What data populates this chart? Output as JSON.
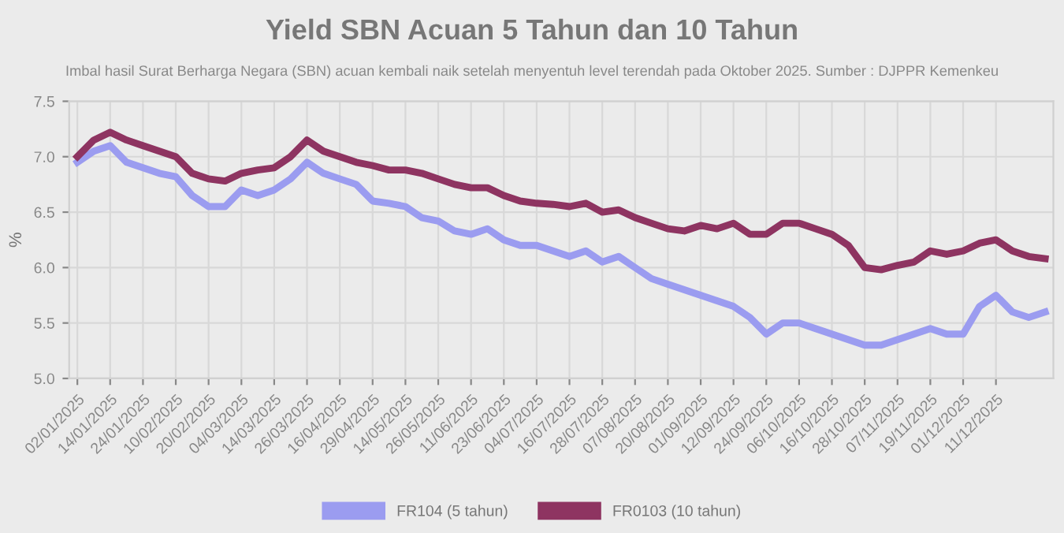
{
  "chart_data": {
    "type": "line",
    "title": "Yield SBN Acuan 5 Tahun dan 10 Tahun",
    "subtitle": "Imbal hasil Surat Berharga Negara (SBN) acuan kembali naik setelah menyentuh level terendah pada Oktober 2025. Sumber : DJPPR Kemenkeu",
    "ylabel": "%",
    "categories": [
      "02/01/2025",
      null,
      "14/01/2025",
      null,
      "24/01/2025",
      null,
      "10/02/2025",
      null,
      "20/02/2025",
      null,
      "04/03/2025",
      null,
      "14/03/2025",
      null,
      "26/03/2025",
      null,
      "16/04/2025",
      null,
      "29/04/2025",
      null,
      "14/05/2025",
      null,
      "26/05/2025",
      null,
      "11/06/2025",
      null,
      "23/06/2025",
      null,
      "04/07/2025",
      null,
      "16/07/2025",
      null,
      "28/07/2025",
      null,
      "07/08/2025",
      null,
      "20/08/2025",
      null,
      "01/09/2025",
      null,
      "12/09/2025",
      null,
      "24/09/2025",
      null,
      "06/10/2025",
      null,
      "16/10/2025",
      null,
      "28/10/2025",
      null,
      "07/11/2025",
      null,
      "19/11/2025",
      null,
      "01/12/2025",
      null,
      "11/12/2025",
      null,
      null,
      null
    ],
    "series": [
      {
        "name": "FR104 (5 tahun)",
        "color": "#9b9cf0",
        "values": [
          6.95,
          7.05,
          7.1,
          6.95,
          6.9,
          6.85,
          6.82,
          6.65,
          6.55,
          6.55,
          6.7,
          6.65,
          6.7,
          6.8,
          6.95,
          6.85,
          6.8,
          6.75,
          6.6,
          6.58,
          6.55,
          6.45,
          6.42,
          6.33,
          6.3,
          6.35,
          6.25,
          6.2,
          6.2,
          6.15,
          6.1,
          6.15,
          6.05,
          6.1,
          6.0,
          5.9,
          5.85,
          5.8,
          5.75,
          5.7,
          5.65,
          5.55,
          5.4,
          5.5,
          5.5,
          5.45,
          5.4,
          5.35,
          5.3,
          5.3,
          5.35,
          5.4,
          5.45,
          5.4,
          5.4,
          5.65,
          5.75,
          5.6,
          5.55,
          5.6
        ]
      },
      {
        "name": "FR0103 (10 tahun)",
        "color": "#8e3461",
        "values": [
          7.0,
          7.15,
          7.22,
          7.15,
          7.1,
          7.05,
          7.0,
          6.85,
          6.8,
          6.78,
          6.85,
          6.88,
          6.9,
          7.0,
          7.15,
          7.05,
          7.0,
          6.95,
          6.92,
          6.88,
          6.88,
          6.85,
          6.8,
          6.75,
          6.72,
          6.72,
          6.65,
          6.6,
          6.58,
          6.57,
          6.55,
          6.58,
          6.5,
          6.52,
          6.45,
          6.4,
          6.35,
          6.33,
          6.38,
          6.35,
          6.4,
          6.3,
          6.3,
          6.4,
          6.4,
          6.35,
          6.3,
          6.2,
          6.0,
          5.98,
          6.02,
          6.05,
          6.15,
          6.12,
          6.15,
          6.22,
          6.25,
          6.15,
          6.1,
          6.08
        ]
      }
    ],
    "ylim": [
      5.0,
      7.5
    ],
    "yticks": [
      {
        "value": 5,
        "label": "5.0"
      },
      5.5,
      {
        "value": 6,
        "label": "6.0"
      },
      6.5,
      {
        "value": 7,
        "label": "7.0"
      },
      7.5
    ],
    "grid": true,
    "legend": "bottom",
    "marker": "none",
    "line_style": "solid"
  }
}
